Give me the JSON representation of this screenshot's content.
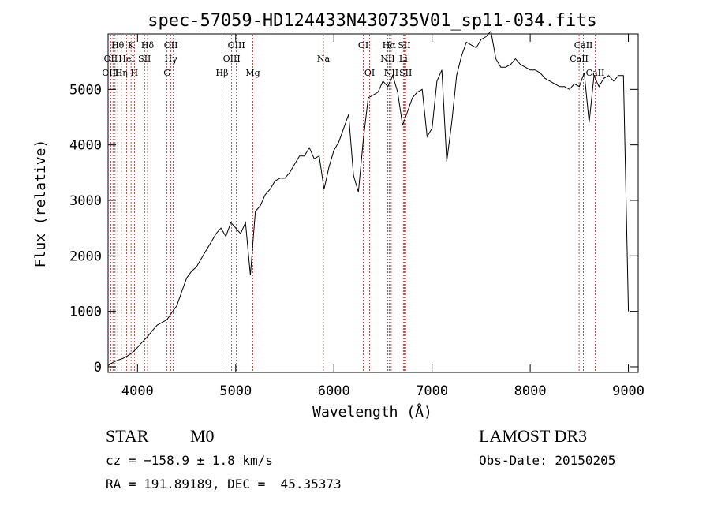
{
  "chart_data": {
    "type": "line",
    "title": "spec-57059-HD124433N430735V01_sp11-034.fits",
    "xlabel": "Wavelength (Å)",
    "ylabel": "Flux (relative)",
    "xlim": [
      3700,
      9100
    ],
    "ylim": [
      -100,
      6000
    ],
    "x_ticks": [
      4000,
      5000,
      6000,
      7000,
      8000,
      9000
    ],
    "y_ticks": [
      0,
      1000,
      2000,
      3000,
      4000,
      5000
    ],
    "grid": false,
    "line_color": "#000000",
    "marker_color": "#b22222",
    "series": [
      {
        "x": [
          3700,
          3750,
          3800,
          3850,
          3900,
          3950,
          4000,
          4050,
          4100,
          4150,
          4200,
          4250,
          4300,
          4350,
          4400,
          4450,
          4500,
          4550,
          4600,
          4650,
          4700,
          4750,
          4800,
          4850,
          4900,
          4950,
          5000,
          5050,
          5100,
          5150,
          5200,
          5250,
          5300,
          5350,
          5400,
          5450,
          5500,
          5550,
          5600,
          5650,
          5700,
          5750,
          5800,
          5850,
          5900,
          5950,
          6000,
          6050,
          6100,
          6150,
          6200,
          6250,
          6300,
          6350,
          6400,
          6450,
          6500,
          6550,
          6600,
          6650,
          6700,
          6750,
          6800,
          6850,
          6900,
          6950,
          7000,
          7050,
          7100,
          7150,
          7200,
          7250,
          7300,
          7350,
          7400,
          7450,
          7500,
          7550,
          7600,
          7650,
          7700,
          7750,
          7800,
          7850,
          7900,
          7950,
          8000,
          8050,
          8100,
          8150,
          8200,
          8250,
          8300,
          8350,
          8400,
          8450,
          8500,
          8550,
          8600,
          8650,
          8700,
          8750,
          8800,
          8850,
          8900,
          8950,
          9000
        ],
        "y": [
          20,
          80,
          120,
          150,
          200,
          260,
          350,
          450,
          540,
          650,
          750,
          800,
          850,
          980,
          1100,
          1350,
          1600,
          1720,
          1800,
          1950,
          2100,
          2250,
          2400,
          2500,
          2350,
          2600,
          2500,
          2400,
          2600,
          1650,
          2800,
          2900,
          3100,
          3200,
          3350,
          3400,
          3400,
          3500,
          3650,
          3800,
          3800,
          3950,
          3750,
          3800,
          3200,
          3600,
          3900,
          4050,
          4300,
          4550,
          3450,
          3150,
          4100,
          4850,
          4900,
          4950,
          5150,
          5050,
          5250,
          4950,
          4350,
          4600,
          4850,
          4950,
          5000,
          4150,
          4300,
          5150,
          5350,
          3700,
          4400,
          5250,
          5600,
          5850,
          5800,
          5750,
          5900,
          5950,
          6050,
          5550,
          5400,
          5400,
          5450,
          5550,
          5450,
          5400,
          5350,
          5350,
          5300,
          5200,
          5150,
          5100,
          5050,
          5050,
          5000,
          5100,
          5050,
          5300,
          4400,
          5250,
          5050,
          5200,
          5250,
          5150,
          5250,
          5250,
          1000
        ]
      }
    ],
    "line_labels": [
      {
        "label": "Hθ",
        "wl": 3798,
        "row": 0
      },
      {
        "label": "K",
        "wl": 3934,
        "row": 0
      },
      {
        "label": "Hδ",
        "wl": 4102,
        "row": 0
      },
      {
        "label": "OII",
        "wl": 4340,
        "row": 0
      },
      {
        "label": "OIII",
        "wl": 5007,
        "row": 0
      },
      {
        "label": "OI",
        "wl": 6300,
        "row": 0
      },
      {
        "label": "Hα",
        "wl": 6563,
        "row": 0
      },
      {
        "label": "SII",
        "wl": 6717,
        "row": 0
      },
      {
        "label": "CaII",
        "wl": 8542,
        "row": 0
      },
      {
        "label": "OII",
        "wl": 3727,
        "row": 1
      },
      {
        "label": "HeI",
        "wl": 3889,
        "row": 1
      },
      {
        "label": "SII",
        "wl": 4072,
        "row": 1
      },
      {
        "label": "Hγ",
        "wl": 4340,
        "row": 1
      },
      {
        "label": "OIII",
        "wl": 4959,
        "row": 1
      },
      {
        "label": "Na",
        "wl": 5893,
        "row": 1
      },
      {
        "label": "NII",
        "wl": 6548,
        "row": 1
      },
      {
        "label": "Li",
        "wl": 6708,
        "row": 1
      },
      {
        "label": "CaII",
        "wl": 8498,
        "row": 1
      },
      {
        "label": "OIII",
        "wl": 3727,
        "row": 2
      },
      {
        "label": "Hη",
        "wl": 3835,
        "row": 2
      },
      {
        "label": "H",
        "wl": 3968,
        "row": 2
      },
      {
        "label": "G",
        "wl": 4300,
        "row": 2
      },
      {
        "label": "Hβ",
        "wl": 4861,
        "row": 2
      },
      {
        "label": "Mg",
        "wl": 5175,
        "row": 2
      },
      {
        "label": "OI",
        "wl": 6364,
        "row": 2
      },
      {
        "label": "NII",
        "wl": 6584,
        "row": 2
      },
      {
        "label": "SII",
        "wl": 6731,
        "row": 2
      },
      {
        "label": "CaII",
        "wl": 8662,
        "row": 2
      }
    ],
    "marker_lines": [
      3727,
      3750,
      3771,
      3798,
      3835,
      3889,
      3934,
      3968,
      4072,
      4102,
      4300,
      4340,
      4363,
      4861,
      4959,
      5007,
      5175,
      5893,
      6300,
      6364,
      6548,
      6563,
      6584,
      6708,
      6717,
      6731,
      8498,
      8542,
      8662
    ]
  },
  "info": {
    "object_class": "STAR",
    "subclass": "M0",
    "survey": "LAMOST DR3",
    "cz": "cz = −158.9 ± 1.8 km/s",
    "obs_date": "Obs-Date: 20150205",
    "coords": "RA = 191.89189, DEC =  45.35373"
  }
}
